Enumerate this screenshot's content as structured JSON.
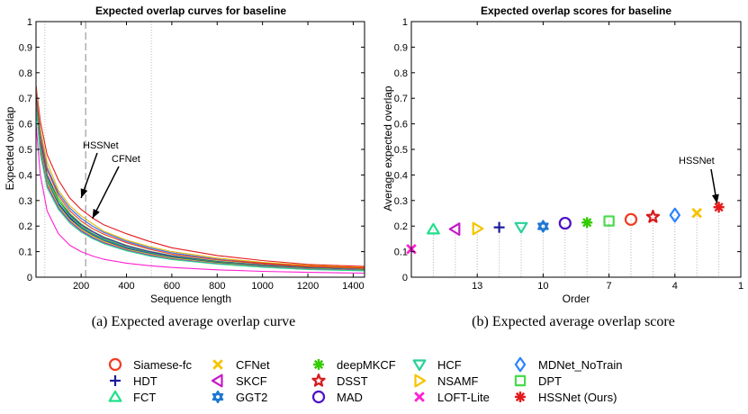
{
  "chart_data": [
    {
      "type": "line",
      "title": "Expected overlap curves for baseline",
      "xlabel": "Sequence length",
      "ylabel": "Expected overlap",
      "xlim": [
        1,
        1450
      ],
      "ylim": [
        0,
        1
      ],
      "xticks": [
        200,
        400,
        600,
        800,
        1000,
        1200,
        1400
      ],
      "yticks": [
        0,
        0.1,
        0.2,
        0.3,
        0.4,
        0.5,
        0.6,
        0.7,
        0.8,
        0.9,
        1
      ],
      "vlines": {
        "dashed": [
          220
        ],
        "dotted": [
          40,
          510
        ]
      },
      "x": [
        1,
        20,
        50,
        100,
        150,
        200,
        250,
        300,
        400,
        500,
        600,
        800,
        1000,
        1200,
        1450
      ],
      "series": [
        {
          "name": "HSSNet (Ours)",
          "color": "#e41a1c",
          "values": [
            0.75,
            0.61,
            0.48,
            0.38,
            0.31,
            0.265,
            0.232,
            0.205,
            0.17,
            0.14,
            0.115,
            0.085,
            0.065,
            0.05,
            0.042
          ]
        },
        {
          "name": "CFNet",
          "color": "#e6b800",
          "values": [
            0.74,
            0.58,
            0.45,
            0.34,
            0.28,
            0.24,
            0.21,
            0.18,
            0.145,
            0.12,
            0.1,
            0.075,
            0.058,
            0.046,
            0.038
          ]
        },
        {
          "name": "DSST",
          "color": "#d7191c",
          "values": [
            0.72,
            0.55,
            0.42,
            0.33,
            0.27,
            0.23,
            0.2,
            0.175,
            0.14,
            0.115,
            0.095,
            0.07,
            0.055,
            0.043,
            0.036
          ]
        },
        {
          "name": "MDNet_NoTrain",
          "color": "#2b83ff",
          "values": [
            0.73,
            0.56,
            0.43,
            0.33,
            0.27,
            0.23,
            0.2,
            0.175,
            0.14,
            0.115,
            0.095,
            0.07,
            0.052,
            0.04,
            0.033
          ]
        },
        {
          "name": "Siamese-fc",
          "color": "#f03b20",
          "values": [
            0.72,
            0.55,
            0.42,
            0.32,
            0.26,
            0.22,
            0.19,
            0.168,
            0.135,
            0.11,
            0.09,
            0.068,
            0.052,
            0.041,
            0.034
          ]
        },
        {
          "name": "DPT",
          "color": "#4cd94c",
          "values": [
            0.7,
            0.53,
            0.4,
            0.31,
            0.25,
            0.21,
            0.18,
            0.158,
            0.125,
            0.102,
            0.085,
            0.063,
            0.048,
            0.038,
            0.031
          ]
        },
        {
          "name": "MAD",
          "color": "#4b0fc7",
          "values": [
            0.7,
            0.53,
            0.4,
            0.3,
            0.245,
            0.205,
            0.178,
            0.155,
            0.123,
            0.1,
            0.083,
            0.061,
            0.047,
            0.037,
            0.03
          ]
        },
        {
          "name": "deepMKCF",
          "color": "#33cc00",
          "values": [
            0.69,
            0.52,
            0.39,
            0.3,
            0.24,
            0.2,
            0.172,
            0.15,
            0.118,
            0.096,
            0.08,
            0.059,
            0.045,
            0.035,
            0.029
          ]
        },
        {
          "name": "GGT2",
          "color": "#1f78d1",
          "values": [
            0.68,
            0.51,
            0.38,
            0.29,
            0.235,
            0.195,
            0.168,
            0.146,
            0.115,
            0.094,
            0.078,
            0.057,
            0.044,
            0.034,
            0.028
          ]
        },
        {
          "name": "HDT",
          "color": "#1a1a9f",
          "values": [
            0.68,
            0.5,
            0.37,
            0.285,
            0.23,
            0.19,
            0.164,
            0.142,
            0.112,
            0.091,
            0.076,
            0.056,
            0.043,
            0.034,
            0.027
          ]
        },
        {
          "name": "NSAMF",
          "color": "#f5c400",
          "values": [
            0.68,
            0.5,
            0.37,
            0.28,
            0.225,
            0.188,
            0.162,
            0.14,
            0.11,
            0.09,
            0.075,
            0.055,
            0.042,
            0.033,
            0.027
          ]
        },
        {
          "name": "HCF",
          "color": "#2ad19a",
          "values": [
            0.67,
            0.49,
            0.36,
            0.275,
            0.22,
            0.183,
            0.157,
            0.136,
            0.107,
            0.087,
            0.072,
            0.053,
            0.041,
            0.032,
            0.026
          ]
        },
        {
          "name": "SKCF",
          "color": "#c51bc5",
          "values": [
            0.67,
            0.49,
            0.36,
            0.27,
            0.218,
            0.181,
            0.155,
            0.135,
            0.106,
            0.086,
            0.071,
            0.052,
            0.04,
            0.031,
            0.026
          ]
        },
        {
          "name": "FCT",
          "color": "#1fe08a",
          "values": [
            0.66,
            0.48,
            0.35,
            0.265,
            0.212,
            0.176,
            0.151,
            0.131,
            0.103,
            0.083,
            0.069,
            0.051,
            0.039,
            0.03,
            0.025
          ]
        },
        {
          "name": "LOFT-Lite",
          "color": "#ff1fd2",
          "values": [
            0.6,
            0.4,
            0.26,
            0.17,
            0.125,
            0.1,
            0.083,
            0.07,
            0.055,
            0.045,
            0.038,
            0.029,
            0.023,
            0.019,
            0.016
          ]
        }
      ],
      "annotations": [
        {
          "text": "HSSNet",
          "point": [
            200,
            0.31
          ]
        },
        {
          "text": "CFNet",
          "point": [
            250,
            0.23
          ]
        }
      ]
    },
    {
      "type": "scatter",
      "title": "Expected overlap scores for baseline",
      "xlabel": "Order",
      "ylabel": "Average expected overlap",
      "xlim": [
        16,
        1
      ],
      "ylim": [
        0,
        1
      ],
      "xticks": [
        13,
        10,
        7,
        4,
        1
      ],
      "yticks": [
        0,
        0.1,
        0.2,
        0.3,
        0.4,
        0.5,
        0.6,
        0.7,
        0.8,
        0.9,
        1
      ],
      "points": [
        {
          "rank": 16,
          "name": "LOFT-Lite",
          "value": 0.11,
          "marker": "x",
          "color": "#ff1fd2"
        },
        {
          "rank": 15,
          "name": "FCT",
          "value": 0.187,
          "marker": "triangle-up",
          "color": "#1fe08a"
        },
        {
          "rank": 14,
          "name": "SKCF",
          "value": 0.188,
          "marker": "triangle-left",
          "color": "#c51bc5"
        },
        {
          "rank": 13,
          "name": "NSAMF",
          "value": 0.19,
          "marker": "triangle-right",
          "color": "#f5c400"
        },
        {
          "rank": 12,
          "name": "HDT",
          "value": 0.195,
          "marker": "plus",
          "color": "#1a1a9f"
        },
        {
          "rank": 11,
          "name": "HCF",
          "value": 0.196,
          "marker": "triangle-down",
          "color": "#2ad19a"
        },
        {
          "rank": 10,
          "name": "GGT2",
          "value": 0.199,
          "marker": "hexagram",
          "color": "#1f78d1"
        },
        {
          "rank": 9,
          "name": "MAD",
          "value": 0.211,
          "marker": "circle",
          "color": "#4b0fc7"
        },
        {
          "rank": 8,
          "name": "deepMKCF",
          "value": 0.214,
          "marker": "asterisk",
          "color": "#33cc00"
        },
        {
          "rank": 7,
          "name": "DPT",
          "value": 0.22,
          "marker": "square",
          "color": "#4cd94c"
        },
        {
          "rank": 6,
          "name": "Siamese-fc",
          "value": 0.226,
          "marker": "circle",
          "color": "#f03b20"
        },
        {
          "rank": 5,
          "name": "DSST",
          "value": 0.236,
          "marker": "star",
          "color": "#d7191c"
        },
        {
          "rank": 4,
          "name": "MDNet_NoTrain",
          "value": 0.243,
          "marker": "diamond",
          "color": "#2b83ff"
        },
        {
          "rank": 3,
          "name": "CFNet",
          "value": 0.251,
          "marker": "x",
          "color": "#f5c400"
        },
        {
          "rank": 2,
          "name": "HSSNet (Ours)",
          "value": 0.274,
          "marker": "asterisk",
          "color": "#e41a1c"
        }
      ],
      "annotations": [
        {
          "text": "HSSNet",
          "point": [
            2,
            0.274
          ]
        }
      ]
    }
  ],
  "captions": {
    "a": "(a)  Expected average overlap curve",
    "b": "(b)  Expected average overlap score"
  },
  "legend": {
    "entries": [
      {
        "name": "Siamese-fc",
        "marker": "circle",
        "color": "#f03b20"
      },
      {
        "name": "HDT",
        "marker": "plus",
        "color": "#1a1a9f"
      },
      {
        "name": "FCT",
        "marker": "triangle-up",
        "color": "#1fe08a"
      },
      {
        "name": "CFNet",
        "marker": "x",
        "color": "#f5c400"
      },
      {
        "name": "SKCF",
        "marker": "triangle-left",
        "color": "#c51bc5"
      },
      {
        "name": "GGT2",
        "marker": "hexagram",
        "color": "#1f78d1"
      },
      {
        "name": "deepMKCF",
        "marker": "asterisk",
        "color": "#33cc00"
      },
      {
        "name": "DSST",
        "marker": "star",
        "color": "#d7191c"
      },
      {
        "name": "MAD",
        "marker": "circle",
        "color": "#4b0fc7"
      },
      {
        "name": "HCF",
        "marker": "triangle-down",
        "color": "#2ad19a"
      },
      {
        "name": "NSAMF",
        "marker": "triangle-right",
        "color": "#f5c400"
      },
      {
        "name": "LOFT-Lite",
        "marker": "x",
        "color": "#ff1fd2"
      },
      {
        "name": "MDNet_NoTrain",
        "marker": "diamond",
        "color": "#2b83ff"
      },
      {
        "name": "DPT",
        "marker": "square",
        "color": "#4cd94c"
      },
      {
        "name": "HSSNet (Ours)",
        "marker": "asterisk",
        "color": "#e41a1c"
      }
    ]
  }
}
